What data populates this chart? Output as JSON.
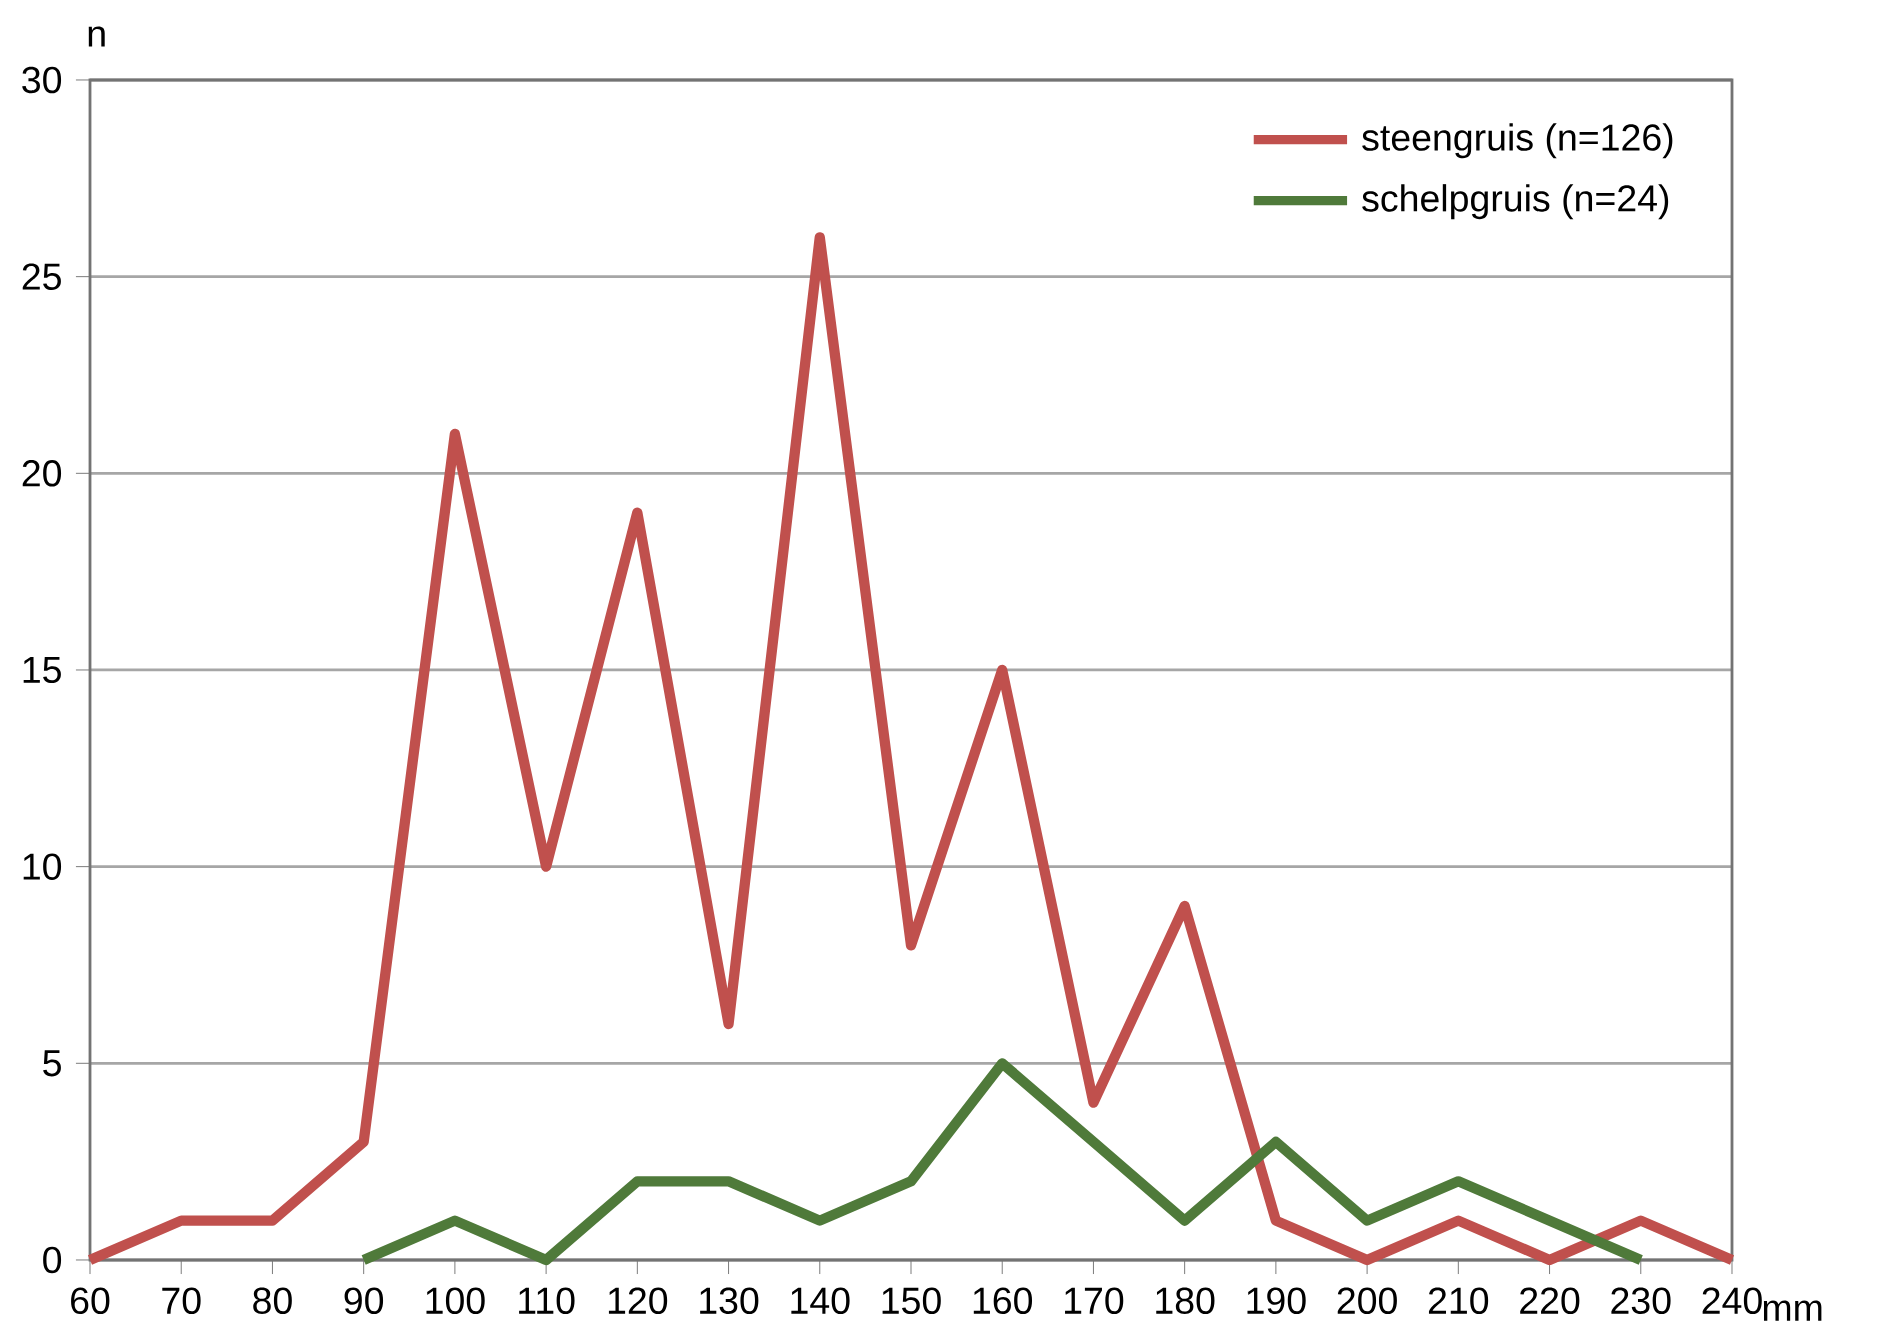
{
  "chart_data": {
    "type": "line",
    "xlabel": "mm",
    "ylabel": "n",
    "xlim": [
      60,
      240
    ],
    "xticks": [
      60,
      70,
      80,
      90,
      100,
      110,
      120,
      130,
      140,
      150,
      160,
      170,
      180,
      190,
      200,
      210,
      220,
      230,
      240
    ],
    "ylim": [
      0,
      30
    ],
    "yticks": [
      0,
      5,
      10,
      15,
      20,
      25,
      30
    ],
    "grid": "y",
    "legend": "top right",
    "marker": "none",
    "line_style": "solid",
    "series": [
      {
        "name": "steengruis (n=126)",
        "color": "#c0504d",
        "x": [
          60,
          70,
          80,
          90,
          100,
          110,
          120,
          130,
          140,
          150,
          160,
          170,
          180,
          190,
          200,
          210,
          220,
          230,
          240
        ],
        "values": [
          0,
          1,
          1,
          3,
          21,
          10,
          19,
          6,
          26,
          8,
          15,
          4,
          9,
          1,
          0,
          1,
          0,
          1,
          0
        ]
      },
      {
        "name": "schelpgruis (n=24)",
        "color": "#4f7a3a",
        "x": [
          90,
          100,
          110,
          120,
          130,
          140,
          150,
          160,
          170,
          180,
          190,
          200,
          210,
          220,
          230
        ],
        "values": [
          0,
          1,
          0,
          2,
          2,
          1,
          2,
          5,
          3,
          1,
          3,
          1,
          2,
          1,
          0
        ]
      }
    ]
  }
}
